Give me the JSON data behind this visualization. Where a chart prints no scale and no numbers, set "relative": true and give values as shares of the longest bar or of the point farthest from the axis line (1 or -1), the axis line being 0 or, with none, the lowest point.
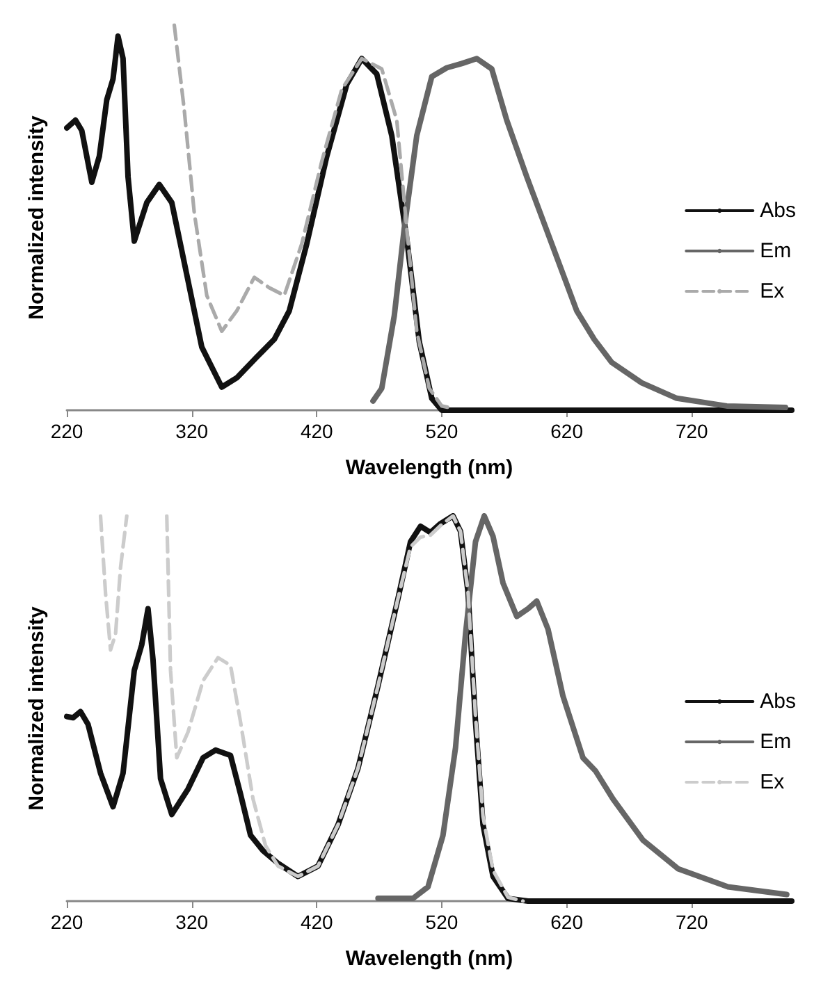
{
  "chart_data": [
    {
      "type": "line",
      "relative": true,
      "xlabel": "Wavelength (nm)",
      "ylabel": "Normalized intensity",
      "xlim": [
        220,
        800
      ],
      "xticks": [
        220,
        320,
        420,
        520,
        620,
        720
      ],
      "legend": "right",
      "grid": false,
      "marker": "none",
      "series": [
        {
          "name": "Abs",
          "color": "#111111",
          "x": [
            220,
            227,
            232,
            240,
            246,
            252,
            257,
            261,
            265,
            269,
            274,
            284,
            294,
            304,
            316,
            328,
            344,
            356,
            372,
            386,
            398,
            412,
            428,
            444,
            456,
            468,
            480,
            492,
            502,
            512,
            520,
            540,
            600,
            700,
            800
          ],
          "values": [
            0.733,
            0.753,
            0.726,
            0.592,
            0.659,
            0.806,
            0.86,
            0.971,
            0.913,
            0.606,
            0.439,
            0.539,
            0.586,
            0.539,
            0.352,
            0.164,
            0.06,
            0.084,
            0.138,
            0.184,
            0.258,
            0.432,
            0.659,
            0.846,
            0.913,
            0.873,
            0.713,
            0.445,
            0.178,
            0.031,
            0,
            0,
            0,
            0,
            0
          ]
        },
        {
          "name": "Em",
          "color": "#666666",
          "x": [
            465,
            472,
            482,
            490,
            500,
            512,
            524,
            536,
            548,
            560,
            572,
            588,
            608,
            628,
            642,
            656,
            680,
            708,
            748,
            795
          ],
          "values": [
            0.024,
            0.057,
            0.245,
            0.472,
            0.713,
            0.866,
            0.889,
            0.9,
            0.913,
            0.886,
            0.753,
            0.606,
            0.432,
            0.258,
            0.184,
            0.124,
            0.071,
            0.031,
            0.011,
            0.007
          ]
        },
        {
          "name": "Ex",
          "color": "#aaaaaa",
          "line_style": "dashed",
          "x": [
            306,
            314,
            322,
            332,
            344,
            356,
            370,
            382,
            394,
            408,
            424,
            440,
            456,
            472,
            484,
            492,
            500,
            510,
            520,
            530
          ],
          "values": [
            1,
            0.779,
            0.512,
            0.298,
            0.205,
            0.258,
            0.345,
            0.318,
            0.298,
            0.432,
            0.646,
            0.833,
            0.913,
            0.886,
            0.753,
            0.472,
            0.205,
            0.057,
            0.011,
            0.004
          ]
        }
      ]
    },
    {
      "type": "line",
      "relative": true,
      "xlabel": "Wavelength (nm)",
      "ylabel": "Normalized intensity",
      "xlim": [
        220,
        800
      ],
      "xticks": [
        220,
        320,
        420,
        520,
        620,
        720
      ],
      "legend": "right",
      "grid": false,
      "marker": "none",
      "series": [
        {
          "name": "Abs",
          "color": "#111111",
          "x": [
            220,
            225,
            231,
            237,
            247,
            257,
            265,
            274,
            280,
            285,
            289,
            295,
            304,
            317,
            329,
            339,
            351,
            359,
            367,
            377,
            389,
            405,
            421,
            437,
            453,
            469,
            485,
            495,
            503,
            511,
            519,
            529,
            535,
            541,
            547,
            553,
            561,
            573,
            589,
            700,
            800
          ],
          "values": [
            0.479,
            0.476,
            0.492,
            0.459,
            0.332,
            0.245,
            0.332,
            0.599,
            0.666,
            0.759,
            0.626,
            0.318,
            0.225,
            0.291,
            0.372,
            0.392,
            0.378,
            0.278,
            0.171,
            0.131,
            0.098,
            0.064,
            0.091,
            0.198,
            0.345,
            0.559,
            0.786,
            0.933,
            0.973,
            0.957,
            0.98,
            1,
            0.96,
            0.802,
            0.465,
            0.198,
            0.064,
            0.007,
            0,
            0,
            0
          ]
        },
        {
          "name": "Em",
          "color": "#666666",
          "x": [
            469,
            497,
            509,
            521,
            531,
            539,
            547,
            554,
            561,
            569,
            580,
            589,
            596,
            605,
            617,
            633,
            643,
            657,
            681,
            709,
            749,
            796
          ],
          "values": [
            0.007,
            0.007,
            0.037,
            0.171,
            0.398,
            0.693,
            0.933,
            1,
            0.947,
            0.826,
            0.739,
            0.759,
            0.779,
            0.706,
            0.532,
            0.372,
            0.338,
            0.265,
            0.158,
            0.084,
            0.037,
            0.017
          ]
        },
        {
          "name": "Ex",
          "color": "#cccccc",
          "line_style": "dashed",
          "x": [
            247,
            251,
            255,
            259,
            263,
            268,
            284,
            300,
            303,
            308,
            317,
            329,
            341,
            351,
            359,
            369,
            379,
            389,
            405,
            421,
            437,
            453,
            469,
            485,
            495,
            503,
            511,
            519,
            529,
            535,
            541,
            547,
            553,
            561,
            573,
            585
          ],
          "values": [
            1,
            0.799,
            0.652,
            0.693,
            0.866,
            1,
            null,
            1,
            0.599,
            0.372,
            0.439,
            0.572,
            0.632,
            0.612,
            0.465,
            0.265,
            0.144,
            0.091,
            0.064,
            0.091,
            0.198,
            0.345,
            0.559,
            0.786,
            0.92,
            0.945,
            0.95,
            0.975,
            1,
            0.96,
            0.802,
            0.48,
            0.22,
            0.08,
            0.01,
            0
          ]
        }
      ]
    }
  ]
}
